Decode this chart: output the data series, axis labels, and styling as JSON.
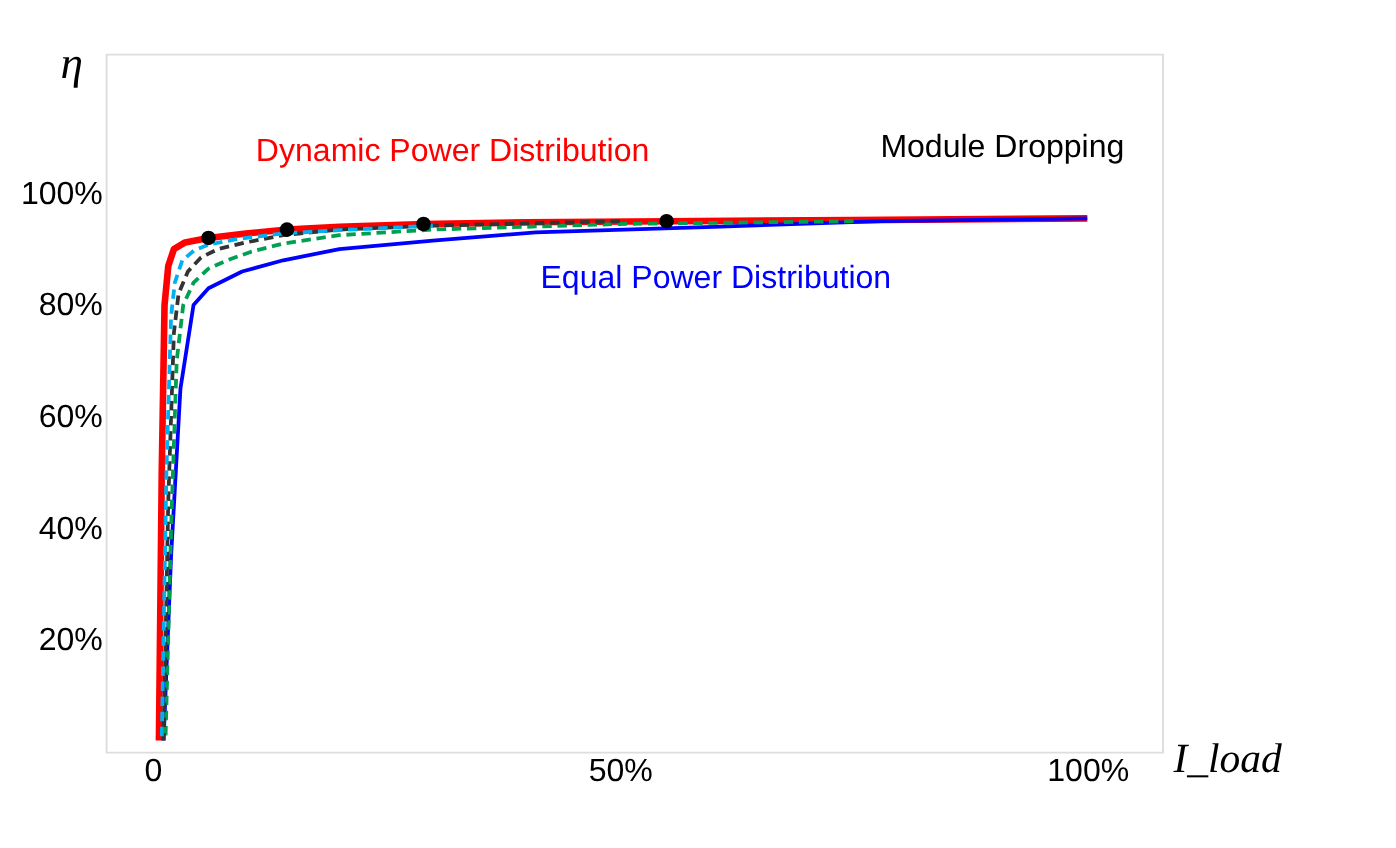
{
  "chart_data": {
    "type": "line",
    "xlabel": "I_load",
    "ylabel": "η",
    "series": [
      {
        "name": "Dynamic Power Distribution",
        "color": "#ff0000",
        "line_style": "solid",
        "x": [
          0.7,
          1,
          1.3,
          1.7,
          2.3,
          3.5,
          6,
          10,
          14.4,
          20,
          29,
          40,
          55,
          75,
          100
        ],
        "values": [
          2,
          50,
          80,
          87,
          90,
          91.2,
          92,
          92.8,
          93.5,
          94,
          94.5,
          94.8,
          95,
          95.2,
          95.5
        ]
      },
      {
        "name": "Equal Power Distribution",
        "color": "#0000ff",
        "line_style": "solid",
        "x": [
          1.2,
          2,
          3,
          4.4,
          6,
          9.6,
          14,
          20,
          30,
          41,
          60,
          78,
          100
        ],
        "values": [
          2,
          35,
          65,
          80,
          83,
          86,
          88,
          90,
          91.5,
          93,
          94,
          95,
          95.5
        ]
      },
      {
        "color": "#00a050",
        "line_style": "dashed",
        "x": [
          1.4,
          2,
          2.6,
          3.3,
          4.4,
          6,
          8,
          10.5,
          14,
          20,
          30,
          50,
          75
        ],
        "values": [
          2,
          40,
          70,
          80,
          84,
          86.5,
          88,
          89.5,
          91,
          92.5,
          93.5,
          94.5,
          95
        ]
      },
      {
        "color": "#333333",
        "line_style": "dashed",
        "x": [
          1.2,
          1.7,
          2.3,
          2.8,
          3.8,
          5.2,
          7,
          10,
          14,
          20,
          30,
          50
        ],
        "values": [
          2,
          45,
          75,
          82,
          86,
          88.5,
          90,
          91.2,
          92.5,
          93.5,
          94.2,
          95
        ]
      },
      {
        "color": "#00b0f0",
        "line_style": "dashed",
        "x": [
          1.0,
          1.5,
          2,
          2.4,
          3.2,
          4.5,
          6,
          9,
          14,
          20,
          30
        ],
        "values": [
          2,
          50,
          78,
          84,
          88,
          89.8,
          90.8,
          91.8,
          92.8,
          93.4,
          94.2
        ]
      },
      {
        "type": "scatter",
        "color": "#000000",
        "marker": "circle",
        "x": [
          6,
          14.4,
          29,
          55
        ],
        "values": [
          92,
          93.5,
          94.5,
          95
        ]
      }
    ],
    "xlim": [
      -5,
      108
    ],
    "ylim": [
      0,
      125
    ],
    "xticks": [
      {
        "value": 0,
        "label": "0"
      },
      {
        "value": 50,
        "label": "50%"
      },
      {
        "value": 100,
        "label": "100%"
      }
    ],
    "yticks": [
      {
        "value": 20,
        "label": "20%"
      },
      {
        "value": 40,
        "label": "40%"
      },
      {
        "value": 60,
        "label": "60%"
      },
      {
        "value": 80,
        "label": "80%"
      },
      {
        "value": 100,
        "label": "100%"
      }
    ],
    "grid": false,
    "annotations": [
      "Module Dropping"
    ]
  }
}
